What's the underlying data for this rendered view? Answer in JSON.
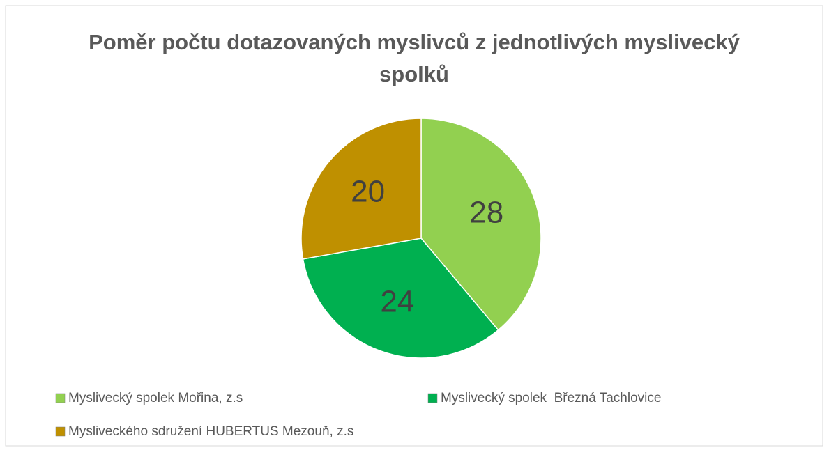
{
  "chart_data": {
    "type": "pie",
    "title": "Poměr počtu dotazovaných myslivců z jednotlivých myslivecký spolků",
    "categories": [
      "Myslivecký spolek Mořina, z.s",
      "Myslivecký spolek  Březná Tachlovice",
      "Mysliveckého sdružení HUBERTUS Mezouň, z.s"
    ],
    "values": [
      28,
      24,
      20
    ],
    "colors": [
      "#92d050",
      "#00b050",
      "#bf9000"
    ],
    "legend": "bottom"
  }
}
